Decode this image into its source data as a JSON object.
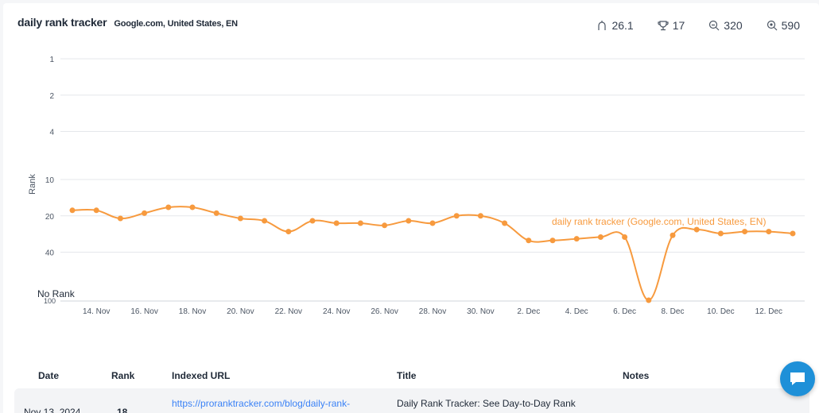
{
  "header": {
    "title": "daily rank tracker",
    "subtitle": "Google.com, United States, EN"
  },
  "stats": [
    {
      "icon": "visibility-icon",
      "value": "26.1"
    },
    {
      "icon": "trophy-icon",
      "value": "17"
    },
    {
      "icon": "search-volume-icon",
      "value": "320"
    },
    {
      "icon": "search-results-icon",
      "value": "590"
    }
  ],
  "chart_data": {
    "type": "line",
    "ylabel": "Rank",
    "y_ticks": [
      "1",
      "2",
      "4",
      "10",
      "20",
      "40",
      "No Rank"
    ],
    "y_tick_100": "100",
    "x_ticks": [
      "14. Nov",
      "16. Nov",
      "18. Nov",
      "20. Nov",
      "22. Nov",
      "24. Nov",
      "26. Nov",
      "28. Nov",
      "30. Nov",
      "2. Dec",
      "4. Dec",
      "6. Dec",
      "8. Dec",
      "10. Dec",
      "12. Dec"
    ],
    "y_scale": "log",
    "grid": true,
    "series": [
      {
        "name": "daily rank tracker (Google.com, United States, EN)",
        "color": "#f79a3e",
        "x": [
          "2024-11-13",
          "2024-11-14",
          "2024-11-15",
          "2024-11-16",
          "2024-11-17",
          "2024-11-18",
          "2024-11-19",
          "2024-11-20",
          "2024-11-21",
          "2024-11-22",
          "2024-11-23",
          "2024-11-24",
          "2024-11-25",
          "2024-11-26",
          "2024-11-27",
          "2024-11-28",
          "2024-11-29",
          "2024-11-30",
          "2024-12-01",
          "2024-12-02",
          "2024-12-03",
          "2024-12-04",
          "2024-12-05",
          "2024-12-06",
          "2024-12-07",
          "2024-12-08",
          "2024-12-09",
          "2024-12-10",
          "2024-12-11",
          "2024-12-12",
          "2024-12-13"
        ],
        "values": [
          18,
          18,
          21,
          19,
          17,
          17,
          19,
          21,
          22,
          27,
          22,
          23,
          23,
          24,
          22,
          23,
          20,
          20,
          23,
          32,
          32,
          31,
          30,
          30,
          100,
          29,
          26,
          28,
          27,
          27,
          28
        ]
      }
    ]
  },
  "table": {
    "columns": [
      "Date",
      "Rank",
      "Indexed URL",
      "Title",
      "Notes"
    ],
    "rows": [
      {
        "date": "Nov 13, 2024",
        "rank": "18",
        "url": "https://proranktracker.com/blog/daily-rank-",
        "title": "Daily Rank Tracker: See Day-to-Day Rank"
      }
    ]
  }
}
